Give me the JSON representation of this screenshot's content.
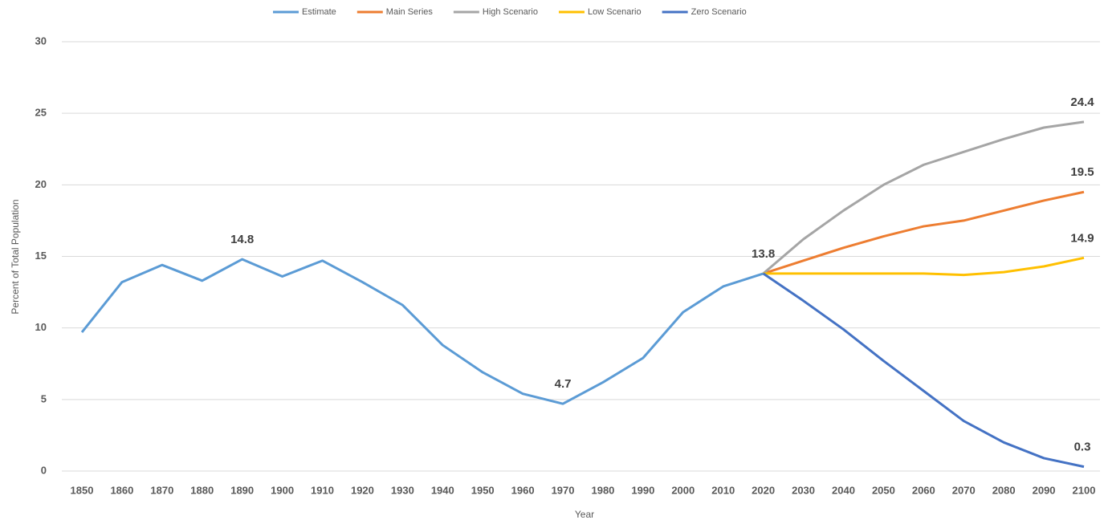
{
  "chart_data": {
    "type": "line",
    "x_label": "Year",
    "y_label": "Percent of Total Population",
    "categories": [
      "1850",
      "1860",
      "1870",
      "1880",
      "1890",
      "1900",
      "1910",
      "1920",
      "1930",
      "1940",
      "1950",
      "1960",
      "1970",
      "1980",
      "1990",
      "2000",
      "2010",
      "2020",
      "2030",
      "2040",
      "2050",
      "2060",
      "2070",
      "2080",
      "2090",
      "2100"
    ],
    "ylim": [
      0,
      30
    ],
    "yticks": [
      0,
      5,
      10,
      15,
      20,
      25,
      30
    ],
    "grid": true,
    "legend": "top",
    "series": [
      {
        "name": "Estimate",
        "color": "#5b9bd5",
        "labeled": [
          4,
          12
        ],
        "values": [
          9.7,
          13.2,
          14.4,
          13.3,
          14.8,
          13.6,
          14.7,
          13.2,
          11.6,
          8.8,
          6.9,
          5.4,
          4.7,
          6.2,
          7.9,
          11.1,
          12.9,
          13.8,
          null,
          null,
          null,
          null,
          null,
          null,
          null,
          null
        ]
      },
      {
        "name": "Main Series",
        "color": "#ed7d31",
        "labeled": [
          17,
          25
        ],
        "values": [
          null,
          null,
          null,
          null,
          null,
          null,
          null,
          null,
          null,
          null,
          null,
          null,
          null,
          null,
          null,
          null,
          null,
          13.8,
          14.7,
          15.6,
          16.4,
          17.1,
          17.5,
          18.2,
          18.9,
          19.5
        ]
      },
      {
        "name": "High Scenario",
        "color": "#a5a5a5",
        "labeled": [
          25
        ],
        "values": [
          null,
          null,
          null,
          null,
          null,
          null,
          null,
          null,
          null,
          null,
          null,
          null,
          null,
          null,
          null,
          null,
          null,
          13.8,
          16.2,
          18.2,
          20.0,
          21.4,
          22.3,
          23.2,
          24.0,
          24.4
        ]
      },
      {
        "name": "Low Scenario",
        "color": "#ffc000",
        "labeled": [
          25
        ],
        "values": [
          null,
          null,
          null,
          null,
          null,
          null,
          null,
          null,
          null,
          null,
          null,
          null,
          null,
          null,
          null,
          null,
          null,
          13.8,
          13.8,
          13.8,
          13.8,
          13.8,
          13.7,
          13.9,
          14.3,
          14.9
        ]
      },
      {
        "name": "Zero Scenario",
        "color": "#4472c4",
        "labeled": [
          25
        ],
        "values": [
          null,
          null,
          null,
          null,
          null,
          null,
          null,
          null,
          null,
          null,
          null,
          null,
          null,
          null,
          null,
          null,
          null,
          13.8,
          11.9,
          9.9,
          7.7,
          5.6,
          3.5,
          2.0,
          0.9,
          0.3
        ]
      }
    ]
  }
}
